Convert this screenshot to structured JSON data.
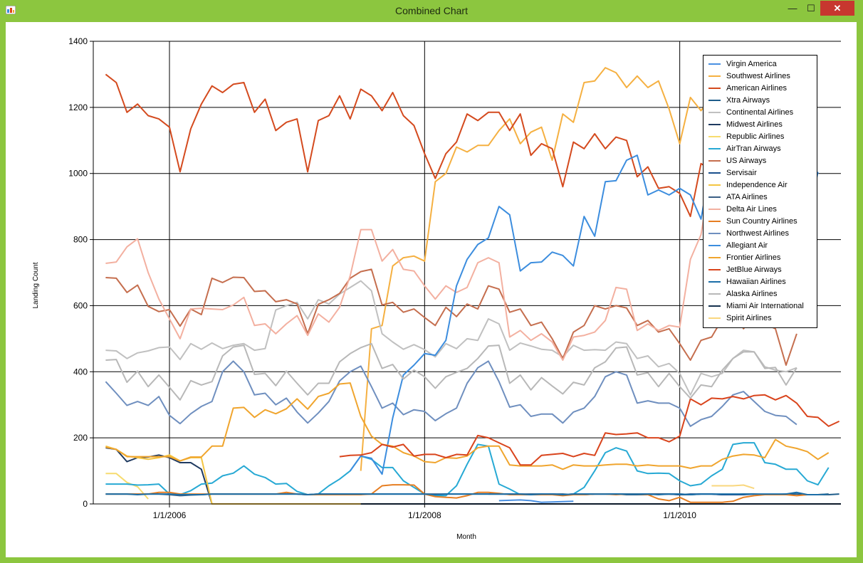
{
  "window": {
    "title": "Combined Chart",
    "close_glyph": "✕",
    "min_glyph": "—",
    "max_glyph": "☐"
  },
  "chart_data": {
    "type": "line",
    "title": "",
    "xlabel": "Month",
    "ylabel": "Landing Count",
    "x_tick_labels": [
      "1/1/2006",
      "1/1/2008",
      "1/1/2010"
    ],
    "y_tick_labels": [
      "0",
      "200",
      "400",
      "600",
      "800",
      "1000",
      "1200",
      "1400"
    ],
    "ylim": [
      0,
      1400
    ],
    "x_range_months": [
      "2005-07",
      "2011-06"
    ],
    "grid": true,
    "legend_position": "top-right",
    "series": [
      {
        "name": "Virgin America",
        "color": "#4a90e2",
        "start": "2008-08",
        "values": [
          10,
          11,
          12,
          10,
          5,
          6,
          7,
          8
        ]
      },
      {
        "name": "Southwest Airlines",
        "color": "#f5b041",
        "start": "2007-07",
        "values": [
          100,
          530,
          540,
          720,
          745,
          750,
          735,
          975,
          1000,
          1080,
          1065,
          1085,
          1085,
          1130,
          1165,
          1090,
          1125,
          1140,
          1040,
          1180,
          1155,
          1275,
          1280,
          1320,
          1305,
          1260,
          1295,
          1260,
          1280,
          1195,
          1090,
          1230,
          1190,
          1230,
          1180,
          1165,
          1125,
          1150,
          1200,
          1210,
          1130,
          1265
        ]
      },
      {
        "name": "American Airlines",
        "color": "#d44a1e",
        "start": "2005-07",
        "values": [
          1300,
          1275,
          1185,
          1210,
          1175,
          1165,
          1140,
          1005,
          1135,
          1210,
          1265,
          1245,
          1270,
          1275,
          1185,
          1225,
          1130,
          1155,
          1165,
          1005,
          1160,
          1175,
          1235,
          1165,
          1255,
          1235,
          1190,
          1245,
          1175,
          1145,
          1060,
          985,
          1060,
          1095,
          1180,
          1160,
          1185,
          1185,
          1130,
          1180,
          1055,
          1090,
          1075,
          960,
          1095,
          1075,
          1120,
          1075,
          1110,
          1100,
          990,
          1020,
          955,
          960,
          940,
          870,
          1030,
          1010,
          980,
          975,
          950,
          920,
          850,
          820,
          800,
          925
        ]
      },
      {
        "name": "Xtra Airways",
        "color": "#1e5c8a",
        "start": "2008-07",
        "values": [
          30,
          30,
          30,
          28,
          28,
          28,
          30,
          30,
          28,
          28,
          30,
          30,
          30,
          28,
          28,
          28,
          30,
          30,
          28,
          28,
          30,
          30,
          28,
          28,
          30,
          30,
          28,
          28,
          30,
          30,
          28,
          28,
          28,
          30
        ]
      },
      {
        "name": "Continental Airlines",
        "color": "#c0c0c0",
        "start": "2005-07",
        "values": [
          465,
          463,
          440,
          457,
          463,
          473,
          475,
          437,
          485,
          468,
          487,
          470,
          480,
          485,
          465,
          470,
          587,
          600,
          610,
          560,
          618,
          605,
          635,
          655,
          675,
          645,
          515,
          490,
          468,
          482,
          467,
          445,
          485,
          470,
          500,
          495,
          560,
          545,
          465,
          487,
          478,
          468,
          465,
          445,
          480,
          465,
          467,
          465,
          490,
          485,
          440,
          448,
          415,
          425,
          395,
          330,
          395,
          385,
          395,
          440,
          465,
          460,
          415,
          405,
          400,
          412
        ]
      },
      {
        "name": "Midwest Airlines",
        "color": "#1f3a60",
        "start": "2005-07",
        "values": [
          170,
          165,
          128,
          140,
          142,
          148,
          140,
          125,
          125,
          105,
          0,
          0,
          0,
          0,
          0,
          0,
          0,
          0,
          0,
          0,
          0,
          0,
          0,
          0,
          0,
          0,
          0,
          0,
          0,
          0,
          0,
          0,
          0,
          0,
          0,
          0,
          0,
          0
        ]
      },
      {
        "name": "Republic Airlines",
        "color": "#f7dc6f",
        "start": "2005-07",
        "values": [
          92,
          92,
          65,
          52,
          15
        ]
      },
      {
        "name": "AirTran Airways",
        "color": "#27a9d4",
        "start": "2005-07",
        "values": [
          60,
          60,
          60,
          57,
          58,
          60,
          30,
          28,
          40,
          60,
          63,
          85,
          93,
          115,
          90,
          80,
          60,
          62,
          38,
          28,
          30,
          55,
          75,
          100,
          145,
          135,
          110,
          110,
          70,
          50,
          30,
          25,
          25,
          55,
          120,
          180,
          175,
          60,
          45,
          28,
          30,
          30,
          28,
          28,
          30,
          50,
          100,
          155,
          170,
          160,
          100,
          92,
          93,
          92,
          70,
          55,
          60,
          85,
          105,
          180,
          185,
          185,
          125,
          120,
          105,
          105,
          70,
          58,
          110
        ]
      },
      {
        "name": "US Airways",
        "color": "#c56e4e",
        "start": "2005-07",
        "values": [
          685,
          683,
          640,
          662,
          598,
          582,
          588,
          538,
          590,
          573,
          683,
          670,
          686,
          685,
          643,
          645,
          612,
          618,
          605,
          515,
          604,
          618,
          637,
          683,
          703,
          710,
          602,
          610,
          580,
          590,
          564,
          540,
          595,
          567,
          605,
          590,
          660,
          650,
          580,
          590,
          540,
          550,
          500,
          440,
          520,
          540,
          600,
          590,
          600,
          593,
          540,
          555,
          520,
          530,
          485,
          435,
          495,
          505,
          560,
          585,
          530,
          580,
          545,
          530,
          420,
          515
        ]
      },
      {
        "name": "Servisair",
        "color": "#1a4f8c",
        "start": "2009-10",
        "values": [
          30,
          30,
          30,
          28,
          30,
          30,
          30,
          28,
          28,
          28,
          30
        ]
      },
      {
        "name": "Independence Air",
        "color": "#f4c542",
        "start": "2005-07",
        "values": [
          175,
          165,
          145,
          140,
          135,
          140,
          148,
          130,
          140,
          140,
          0,
          0,
          0,
          0,
          0,
          0,
          0,
          0,
          0,
          0,
          0,
          0,
          0,
          0,
          0,
          0,
          0,
          0,
          0,
          0,
          0
        ]
      },
      {
        "name": "ATA Airlines",
        "color": "#3b5f85",
        "start": "2005-07",
        "values": [
          30,
          30,
          30,
          30,
          30,
          30,
          28,
          25,
          27,
          28,
          30,
          30,
          30,
          30,
          30,
          30,
          30,
          30,
          30,
          28,
          30,
          30,
          30,
          30,
          30,
          30,
          30,
          30,
          30,
          30,
          30,
          30,
          30,
          30,
          30,
          30,
          30,
          30,
          30,
          30,
          30,
          30,
          30,
          28,
          30,
          30,
          30,
          30,
          30,
          30,
          30,
          30,
          30,
          30,
          30,
          28
        ]
      },
      {
        "name": "Delta Air Lines",
        "color": "#f3b0a0",
        "start": "2005-07",
        "values": [
          728,
          732,
          778,
          802,
          700,
          620,
          560,
          500,
          590,
          592,
          590,
          588,
          602,
          625,
          540,
          545,
          515,
          545,
          570,
          510,
          575,
          550,
          595,
          690,
          830,
          830,
          735,
          770,
          710,
          705,
          660,
          620,
          660,
          640,
          655,
          730,
          745,
          730,
          505,
          525,
          495,
          515,
          490,
          435,
          505,
          510,
          520,
          555,
          655,
          650,
          525,
          545,
          525,
          540,
          535,
          740,
          815,
          1010,
          1090,
          1135,
          1110,
          1125,
          1020,
          935,
          870,
          965
        ]
      },
      {
        "name": "Sun Country Airlines",
        "color": "#e67e22",
        "start": "2005-07",
        "values": [
          30,
          30,
          30,
          30,
          30,
          35,
          35,
          30,
          30,
          30,
          30,
          30,
          30,
          30,
          30,
          30,
          30,
          35,
          30,
          28,
          28,
          28,
          28,
          28,
          28,
          30,
          55,
          58,
          58,
          57,
          30,
          22,
          20,
          18,
          25,
          35,
          35,
          32,
          28,
          28,
          28,
          28,
          28,
          25,
          28,
          28,
          30,
          30,
          28,
          30,
          30,
          28,
          15,
          10,
          20,
          5,
          5,
          5,
          5,
          8,
          20,
          25,
          28,
          28,
          28,
          25,
          28,
          28,
          30
        ]
      },
      {
        "name": "Northwest Airlines",
        "color": "#6f8fbf",
        "start": "2005-07",
        "values": [
          370,
          335,
          298,
          310,
          298,
          325,
          268,
          243,
          273,
          295,
          310,
          400,
          432,
          400,
          330,
          335,
          300,
          320,
          278,
          245,
          275,
          310,
          372,
          400,
          417,
          355,
          290,
          305,
          270,
          285,
          280,
          252,
          273,
          290,
          365,
          412,
          432,
          370,
          293,
          300,
          265,
          272,
          272,
          245,
          278,
          290,
          325,
          385,
          400,
          390,
          305,
          312,
          305,
          305,
          290,
          235,
          255,
          265,
          295,
          330,
          340,
          310,
          280,
          268,
          265,
          240
        ]
      },
      {
        "name": "Allegiant Air",
        "color": "#3c8dde",
        "start": "2007-06",
        "values": [
          100,
          145,
          138,
          90,
          260,
          390,
          420,
          455,
          450,
          495,
          660,
          740,
          785,
          805,
          900,
          875,
          705,
          730,
          732,
          762,
          752,
          720,
          870,
          810,
          975,
          978,
          1040,
          1055,
          935,
          950,
          935,
          955,
          935,
          862,
          1040,
          1050,
          1065,
          1050,
          1060,
          1050,
          955,
          1005,
          980,
          850,
          1005
        ]
      },
      {
        "name": "Frontier Airlines",
        "color": "#f0a52e",
        "start": "2005-07",
        "values": [
          172,
          165,
          143,
          143,
          143,
          143,
          143,
          130,
          142,
          142,
          175,
          175,
          290,
          292,
          262,
          285,
          273,
          288,
          318,
          287,
          325,
          335,
          363,
          366,
          265,
          205,
          180,
          175,
          155,
          145,
          128,
          125,
          140,
          138,
          145,
          170,
          175,
          175,
          118,
          115,
          115,
          115,
          118,
          105,
          118,
          115,
          115,
          118,
          120,
          120,
          115,
          118,
          115,
          115,
          115,
          108,
          115,
          115,
          135,
          145,
          150,
          148,
          140,
          195,
          175,
          168,
          158,
          135,
          155
        ]
      },
      {
        "name": "JetBlue Airways",
        "color": "#d9441c",
        "start": "2007-05",
        "values": [
          143,
          147,
          148,
          155,
          180,
          172,
          180,
          145,
          150,
          150,
          140,
          150,
          148,
          207,
          200,
          185,
          170,
          118,
          118,
          147,
          150,
          153,
          143,
          153,
          147,
          215,
          210,
          212,
          215,
          200,
          200,
          188,
          205,
          318,
          300,
          320,
          318,
          325,
          318,
          328,
          330,
          315,
          328,
          305,
          265,
          262,
          235,
          250
        ]
      },
      {
        "name": "Hawaiian Airlines",
        "color": "#1b6ea8",
        "start": "2005-07",
        "values": [
          30,
          30,
          30,
          28,
          30,
          30,
          30,
          28,
          28,
          28,
          30,
          30,
          30,
          30,
          30,
          30,
          30,
          30,
          30,
          28,
          30,
          30,
          30,
          30,
          30,
          30,
          30,
          30,
          30,
          30,
          30,
          28,
          30,
          30,
          30,
          30,
          30,
          30,
          30,
          30,
          28,
          30,
          30,
          28,
          30,
          30,
          30,
          30,
          30,
          30,
          30,
          30,
          28,
          30,
          30,
          28,
          30,
          30,
          30,
          30,
          30,
          30,
          30,
          30,
          30,
          35,
          28,
          28,
          30
        ]
      },
      {
        "name": "Alaska Airlines",
        "color": "#b8b8b8",
        "start": "2005-07",
        "values": [
          435,
          437,
          368,
          402,
          355,
          390,
          353,
          315,
          373,
          360,
          370,
          448,
          475,
          480,
          392,
          395,
          358,
          402,
          365,
          330,
          365,
          365,
          430,
          455,
          473,
          485,
          410,
          422,
          378,
          405,
          385,
          350,
          385,
          398,
          410,
          440,
          478,
          480,
          365,
          390,
          345,
          382,
          357,
          333,
          368,
          360,
          412,
          430,
          472,
          475,
          390,
          397,
          355,
          395,
          355,
          320,
          360,
          355,
          405,
          440,
          460,
          460,
          410,
          413,
          360,
          412
        ]
      },
      {
        "name": "Miami Air International",
        "color": "#17324f",
        "start": "2007-07",
        "values": [
          0,
          0,
          0,
          0,
          0,
          0,
          0,
          0,
          0,
          0,
          0,
          0,
          0,
          0,
          0,
          0,
          0,
          0,
          0,
          0,
          0,
          0,
          0,
          0,
          0,
          0,
          0,
          0,
          0,
          0,
          0,
          0,
          0,
          0,
          0,
          0,
          0,
          0,
          0,
          0,
          0,
          0,
          0,
          0,
          0,
          0,
          0,
          0,
          0
        ]
      },
      {
        "name": "Spirit Airlines",
        "color": "#f9d77e",
        "start": "2010-04",
        "values": [
          55,
          55,
          55,
          57,
          47
        ]
      }
    ]
  }
}
